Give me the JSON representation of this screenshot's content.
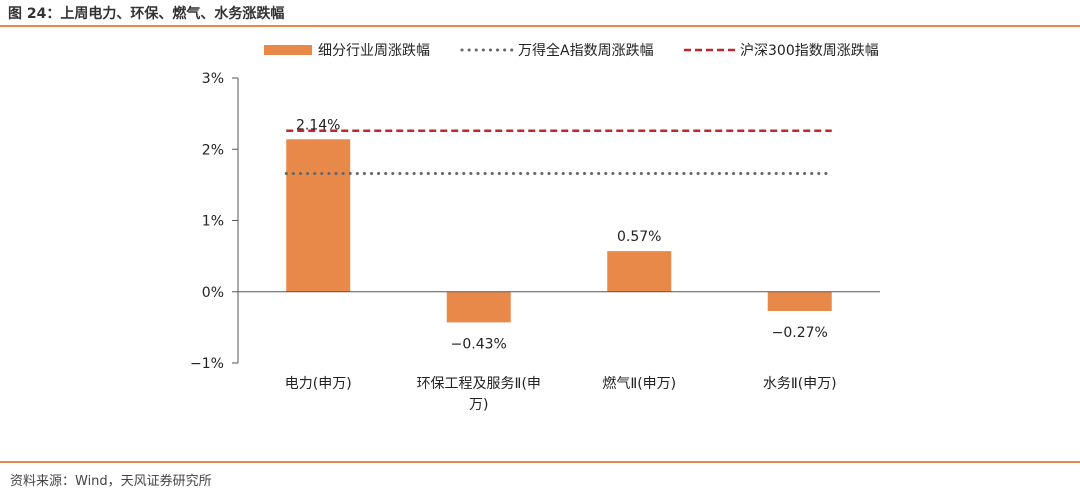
{
  "title": "图 24：上周电力、环保、燃气、水务涨跌幅",
  "source": "资料来源：Wind，天风证券研究所",
  "colors": {
    "bar": "#e8894a",
    "wind_a": "#666666",
    "hs300": "#c0272d",
    "rule": "#e8894a"
  },
  "chart_data": {
    "type": "bar",
    "categories": [
      "电力(申万)",
      "环保工程及服务Ⅱ(申万)",
      "燃气Ⅱ(申万)",
      "水务Ⅱ(申万)"
    ],
    "category_lines": [
      [
        "电力(申万)"
      ],
      [
        "环保工程及服务Ⅱ(申",
        "万)"
      ],
      [
        "燃气Ⅱ(申万)"
      ],
      [
        "水务Ⅱ(申万)"
      ]
    ],
    "series": [
      {
        "name": "细分行业周涨跌幅",
        "type": "bar",
        "values": [
          2.14,
          -0.43,
          0.57,
          -0.27
        ]
      },
      {
        "name": "万得全A指数周涨跌幅",
        "type": "line",
        "style": "dotted",
        "values": [
          1.66,
          1.66,
          1.66,
          1.66
        ]
      },
      {
        "name": "沪深300指数周涨跌幅",
        "type": "line",
        "style": "dashed",
        "values": [
          2.26,
          2.26,
          2.26,
          2.26
        ]
      }
    ],
    "data_labels": [
      "2.14%",
      "−0.43%",
      "0.57%",
      "−0.27%"
    ],
    "ylim": [
      -1,
      3
    ],
    "yticks": [
      3,
      2,
      1,
      0,
      -1
    ],
    "ytick_labels": [
      "3%",
      "2%",
      "1%",
      "0%",
      "−1%"
    ],
    "xlabel": "",
    "ylabel": "",
    "legend_position": "top",
    "grid": false
  }
}
